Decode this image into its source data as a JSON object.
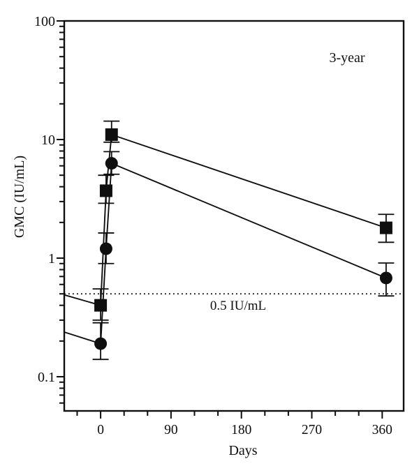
{
  "figure": {
    "background": "#ffffff",
    "ink": "#0f0f0f"
  },
  "chart_data": {
    "type": "line",
    "title": "",
    "xlabel": "Days",
    "ylabel": "GMC (IU/mL)",
    "annotation": "3-year",
    "x_axis": {
      "range_days": [
        -46.5,
        387.4
      ],
      "major_ticks": [
        0,
        90,
        180,
        270,
        360
      ],
      "major_tick_labels": [
        "0",
        "90",
        "180",
        "270",
        "360"
      ],
      "minor_tick_step": 30
    },
    "y_axis": {
      "scale": "log",
      "range": [
        0.0515,
        100
      ],
      "major_ticks": [
        100,
        10,
        1,
        0.1
      ],
      "major_tick_labels": [
        "100",
        "10",
        "1",
        "0.1"
      ]
    },
    "threshold": {
      "value": 0.5,
      "label": "0.5 IU/mL"
    },
    "series": [
      {
        "name": "squares-series",
        "marker": "square",
        "lead_in": {
          "day": -46.5,
          "gmc": 0.49
        },
        "points": [
          {
            "day": 0,
            "gmc": 0.4,
            "err_lo": 0.3,
            "err_hi": 0.55
          },
          {
            "day": 7,
            "gmc": 3.7,
            "err_lo": 2.9,
            "err_hi": 5.0
          },
          {
            "day": 14,
            "gmc": 11.0,
            "err_lo": 9.5,
            "err_hi": 14.3
          },
          {
            "day": 365,
            "gmc": 1.8,
            "err_lo": 1.36,
            "err_hi": 2.34
          }
        ]
      },
      {
        "name": "circles-series",
        "marker": "circle",
        "lead_in": {
          "day": -46.5,
          "gmc": 0.238
        },
        "points": [
          {
            "day": 0,
            "gmc": 0.19,
            "err_lo": 0.14,
            "err_hi": 0.285
          },
          {
            "day": 7,
            "gmc": 1.2,
            "err_lo": 0.9,
            "err_hi": 1.63
          },
          {
            "day": 14,
            "gmc": 6.3,
            "err_lo": 5.1,
            "err_hi": 7.9
          },
          {
            "day": 365,
            "gmc": 0.68,
            "err_lo": 0.48,
            "err_hi": 0.91
          }
        ]
      }
    ]
  }
}
